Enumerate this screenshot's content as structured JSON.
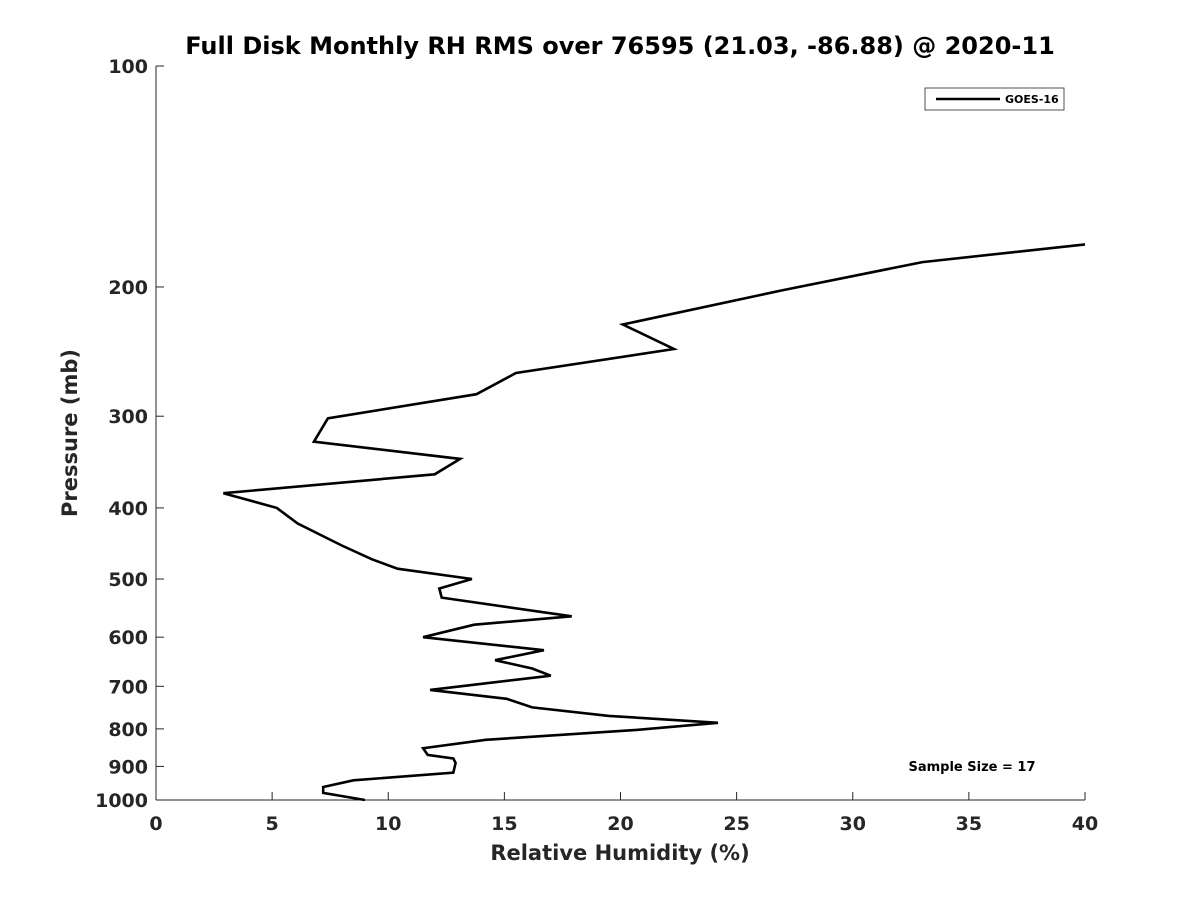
{
  "chart_data": {
    "type": "line",
    "title": "Full Disk Monthly RH RMS over 76595 (21.03, -86.88) @ 2020-11",
    "xlabel": "Relative Humidity (%)",
    "ylabel": "Pressure (mb)",
    "xlim": [
      0,
      40
    ],
    "ylim": [
      100,
      1000
    ],
    "yscale": "log",
    "yreversed": true,
    "grid": false,
    "legend_position": "top-right",
    "xticks": [
      0,
      5,
      10,
      15,
      20,
      25,
      30,
      35,
      40
    ],
    "xtick_labels": [
      "0",
      "5",
      "10",
      "15",
      "20",
      "25",
      "30",
      "35",
      "40"
    ],
    "yticks": [
      100,
      200,
      300,
      400,
      500,
      600,
      700,
      800,
      900,
      1000
    ],
    "ytick_labels": [
      "100",
      "200",
      "300",
      "400",
      "500",
      "600",
      "700",
      "800",
      "900",
      "1000"
    ],
    "series": [
      {
        "name": "GOES-16",
        "color": "#000000",
        "points": [
          [
            40.0,
            175
          ],
          [
            33.0,
            185
          ],
          [
            27.0,
            202
          ],
          [
            20.1,
            225
          ],
          [
            22.3,
            243
          ],
          [
            15.5,
            262
          ],
          [
            13.8,
            280
          ],
          [
            7.4,
            302
          ],
          [
            6.8,
            325
          ],
          [
            13.1,
            343
          ],
          [
            12.0,
            360
          ],
          [
            2.9,
            382
          ],
          [
            5.2,
            400
          ],
          [
            6.1,
            420
          ],
          [
            8.0,
            450
          ],
          [
            9.3,
            470
          ],
          [
            10.4,
            484
          ],
          [
            13.6,
            500
          ],
          [
            12.2,
            515
          ],
          [
            12.3,
            530
          ],
          [
            17.9,
            562
          ],
          [
            13.7,
            577
          ],
          [
            11.5,
            600
          ],
          [
            16.7,
            625
          ],
          [
            14.6,
            645
          ],
          [
            16.2,
            662
          ],
          [
            17.0,
            677
          ],
          [
            11.8,
            708
          ],
          [
            15.1,
            728
          ],
          [
            16.2,
            748
          ],
          [
            19.5,
            768
          ],
          [
            24.2,
            785
          ],
          [
            20.6,
            803
          ],
          [
            14.2,
            828
          ],
          [
            11.5,
            850
          ],
          [
            11.7,
            868
          ],
          [
            12.8,
            878
          ],
          [
            12.9,
            890
          ],
          [
            12.8,
            918
          ],
          [
            8.5,
            940
          ],
          [
            7.2,
            960
          ],
          [
            7.2,
            978
          ],
          [
            9.0,
            1000
          ]
        ]
      }
    ],
    "annotations": [
      "Sample Size = 17"
    ]
  }
}
